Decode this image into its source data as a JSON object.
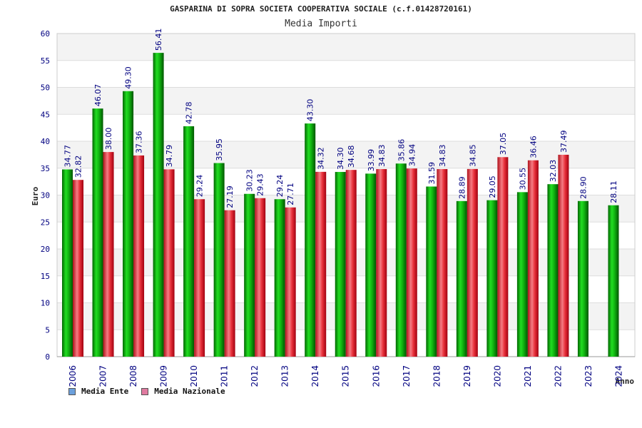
{
  "title": "GASPARINA DI SOPRA SOCIETA COOPERATIVA SOCIALE (c.f.01428720161)",
  "subtitle": "Media Importi",
  "legend": [
    {
      "label": "Media Ente",
      "color": "#6ca0dc"
    },
    {
      "label": "Media Nazionale",
      "color": "#e07aa0"
    }
  ],
  "colors": {
    "ente": "#11b511",
    "nazionale": "#e8303a",
    "label": "#000080",
    "tick": "#000080"
  },
  "chart_data": {
    "type": "bar",
    "title": "GASPARINA DI SOPRA SOCIETA COOPERATIVA SOCIALE (c.f.01428720161)",
    "subtitle": "Media Importi",
    "xlabel": "Anno",
    "ylabel": "Euro",
    "ylim": [
      0,
      60
    ],
    "yticks": [
      0,
      5,
      10,
      15,
      20,
      25,
      30,
      35,
      40,
      45,
      50,
      55,
      60
    ],
    "grid": true,
    "legend_position": "bottom-left",
    "categories": [
      "2006",
      "2007",
      "2008",
      "2009",
      "2010",
      "2011",
      "2012",
      "2013",
      "2014",
      "2015",
      "2016",
      "2017",
      "2018",
      "2019",
      "2020",
      "2021",
      "2022",
      "2023",
      "2024"
    ],
    "series": [
      {
        "name": "Media Ente",
        "values": [
          34.77,
          46.07,
          49.3,
          56.41,
          42.78,
          35.95,
          30.23,
          29.24,
          43.3,
          34.3,
          33.99,
          35.86,
          31.59,
          28.89,
          29.05,
          30.55,
          32.03,
          28.9,
          28.11
        ],
        "labels": [
          "34.77",
          "46.07",
          "49.30",
          "56.41",
          "42.78",
          "35.95",
          "30.23",
          "29.24",
          "43.30",
          "34.30",
          "33.99",
          "35.86",
          "31.59",
          "28.89",
          "29.05",
          "30.55",
          "32.03",
          "28.90",
          "28.11"
        ]
      },
      {
        "name": "Media Nazionale",
        "values": [
          32.82,
          38.0,
          37.36,
          34.79,
          29.24,
          27.19,
          29.43,
          27.71,
          34.32,
          34.68,
          34.83,
          34.94,
          34.83,
          34.85,
          37.05,
          36.46,
          37.49,
          null,
          null
        ],
        "labels": [
          "32.82",
          "38.00",
          "37.36",
          "34.79",
          "29.24",
          "27.19",
          "29.43",
          "27.71",
          "34.32",
          "34.68",
          "34.83",
          "34.94",
          "34.83",
          "34.85",
          "37.05",
          "36.46",
          "37.49",
          "",
          ""
        ]
      }
    ]
  }
}
